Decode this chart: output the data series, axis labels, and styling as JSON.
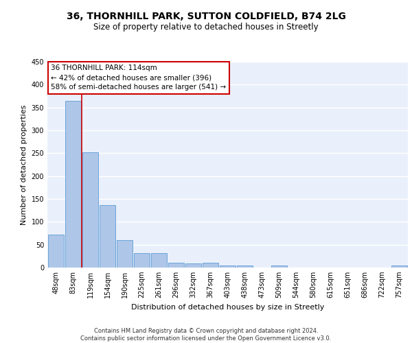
{
  "title1": "36, THORNHILL PARK, SUTTON COLDFIELD, B74 2LG",
  "title2": "Size of property relative to detached houses in Streetly",
  "xlabel": "Distribution of detached houses by size in Streetly",
  "ylabel": "Number of detached properties",
  "bar_labels": [
    "48sqm",
    "83sqm",
    "119sqm",
    "154sqm",
    "190sqm",
    "225sqm",
    "261sqm",
    "296sqm",
    "332sqm",
    "367sqm",
    "403sqm",
    "438sqm",
    "473sqm",
    "509sqm",
    "544sqm",
    "580sqm",
    "615sqm",
    "651sqm",
    "686sqm",
    "722sqm",
    "757sqm"
  ],
  "bar_values": [
    72,
    365,
    252,
    136,
    60,
    31,
    31,
    10,
    9,
    10,
    5,
    5,
    0,
    4,
    0,
    0,
    0,
    0,
    0,
    0,
    4
  ],
  "bar_color": "#aec6e8",
  "bar_edge_color": "#5b9bd5",
  "vline_x": 1.5,
  "vline_color": "#cc0000",
  "annotation_text": "36 THORNHILL PARK: 114sqm\n← 42% of detached houses are smaller (396)\n58% of semi-detached houses are larger (541) →",
  "annotation_box_color": "#ffffff",
  "annotation_box_edge": "#cc0000",
  "ylim": [
    0,
    450
  ],
  "yticks": [
    0,
    50,
    100,
    150,
    200,
    250,
    300,
    350,
    400,
    450
  ],
  "background_color": "#eaf0fb",
  "grid_color": "#ffffff",
  "footer": "Contains HM Land Registry data © Crown copyright and database right 2024.\nContains public sector information licensed under the Open Government Licence v3.0.",
  "title1_fontsize": 10,
  "title2_fontsize": 8.5,
  "xlabel_fontsize": 8,
  "ylabel_fontsize": 8,
  "tick_fontsize": 7,
  "annot_fontsize": 7.5,
  "footer_fontsize": 6
}
